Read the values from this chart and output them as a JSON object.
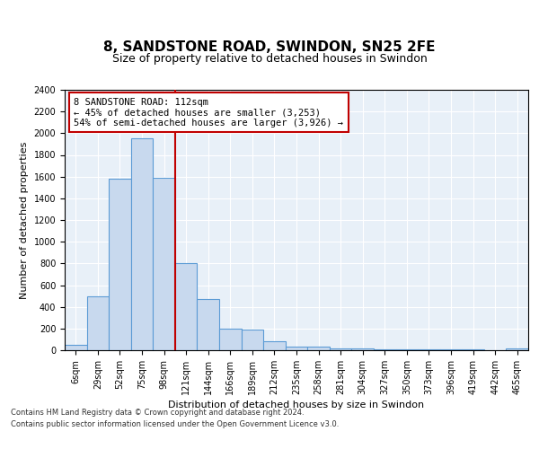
{
  "title_line1": "8, SANDSTONE ROAD, SWINDON, SN25 2FE",
  "title_line2": "Size of property relative to detached houses in Swindon",
  "xlabel": "Distribution of detached houses by size in Swindon",
  "ylabel": "Number of detached properties",
  "footer_line1": "Contains HM Land Registry data © Crown copyright and database right 2024.",
  "footer_line2": "Contains public sector information licensed under the Open Government Licence v3.0.",
  "categories": [
    "6sqm",
    "29sqm",
    "52sqm",
    "75sqm",
    "98sqm",
    "121sqm",
    "144sqm",
    "166sqm",
    "189sqm",
    "212sqm",
    "235sqm",
    "258sqm",
    "281sqm",
    "304sqm",
    "327sqm",
    "350sqm",
    "373sqm",
    "396sqm",
    "419sqm",
    "442sqm",
    "465sqm"
  ],
  "values": [
    50,
    500,
    1580,
    1950,
    1590,
    800,
    470,
    200,
    190,
    85,
    30,
    30,
    20,
    15,
    10,
    5,
    5,
    5,
    5,
    0,
    15
  ],
  "bar_color": "#c8d9ee",
  "bar_edge_color": "#5b9bd5",
  "vline_color": "#c00000",
  "annotation_text": "8 SANDSTONE ROAD: 112sqm\n← 45% of detached houses are smaller (3,253)\n54% of semi-detached houses are larger (3,926) →",
  "annotation_box_color": "white",
  "annotation_box_edge_color": "#c00000",
  "ylim": [
    0,
    2400
  ],
  "yticks": [
    0,
    200,
    400,
    600,
    800,
    1000,
    1200,
    1400,
    1600,
    1800,
    2000,
    2200,
    2400
  ],
  "background_color": "#e8f0f8",
  "fig_background": "white",
  "title_fontsize": 11,
  "subtitle_fontsize": 9,
  "axis_label_fontsize": 8,
  "tick_fontsize": 7,
  "grid_color": "white"
}
